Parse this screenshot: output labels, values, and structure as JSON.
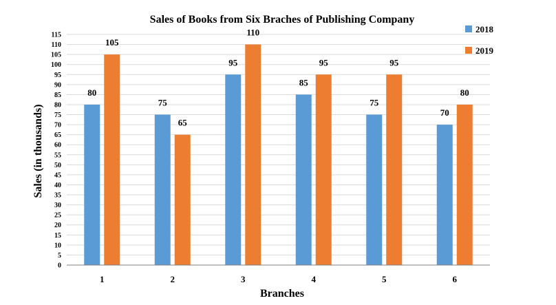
{
  "chart_data": {
    "type": "bar",
    "title": "Sales of Books from Six Braches of Publishing Company",
    "xlabel": "Branches",
    "ylabel": "Sales (in thousands)",
    "categories": [
      "1",
      "2",
      "3",
      "4",
      "5",
      "6"
    ],
    "series": [
      {
        "name": "2018",
        "color": "#5b9bd5",
        "values": [
          80,
          75,
          95,
          85,
          75,
          70
        ]
      },
      {
        "name": "2019",
        "color": "#ed7d31",
        "values": [
          105,
          65,
          110,
          95,
          95,
          80
        ]
      }
    ],
    "ylim": [
      0,
      115
    ],
    "ytick_step": 5,
    "grid": true,
    "legend": "top-right",
    "data_labels": true
  }
}
